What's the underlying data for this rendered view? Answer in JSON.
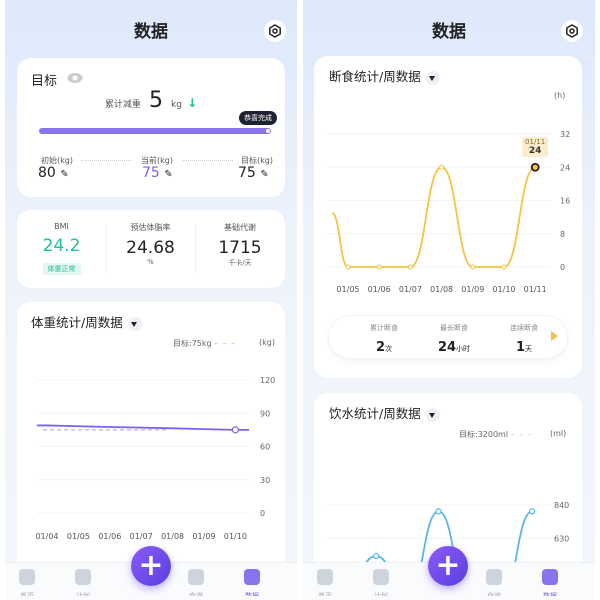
{
  "screens": [
    {
      "title": "数据",
      "settings_icon": "settings-hexagon-icon",
      "goal": {
        "label": "目标",
        "eye_icon": "eye-icon",
        "loss_label": "累计减重",
        "loss_value": "5",
        "loss_unit": "kg",
        "trend_icon": "arrow-down-icon",
        "badge": "恭喜完成",
        "progress_percent": 100,
        "initial_label": "初始(kg)",
        "initial_value": "80",
        "current_label": "当前(kg)",
        "current_value": "75",
        "target_label": "目标(kg)",
        "target_value": "75"
      },
      "metrics": [
        {
          "label": "BMI",
          "value": "24.2",
          "tag": "体重正常"
        },
        {
          "label": "预估体脂率",
          "value": "24.68",
          "unit": "%"
        },
        {
          "label": "基础代谢",
          "value": "1715",
          "unit": "千卡/天"
        }
      ],
      "weight_chart": {
        "title": "体重统计/周数据",
        "target_label": "目标:75kg",
        "unit": "(kg)"
      }
    },
    {
      "title": "数据",
      "settings_icon": "settings-hexagon-icon",
      "fasting_chart": {
        "title": "断食统计/周数据",
        "unit": "(h)",
        "tooltip_date": "01/11",
        "tooltip_value": "24"
      },
      "fasting_summary": [
        {
          "label": "累计断食",
          "value": "2",
          "unit": "次"
        },
        {
          "label": "最长断食",
          "value": "24",
          "unit": "小时"
        },
        {
          "label": "连续断食",
          "value": "1",
          "unit": "天"
        }
      ],
      "water_chart": {
        "title": "饮水统计/周数据",
        "target_label": "目标:3200ml",
        "unit": "(ml)"
      }
    }
  ],
  "tabbar": {
    "tabs": [
      "首页",
      "计划",
      "记录",
      "食谱",
      "数据"
    ],
    "active": "数据",
    "add_icon": "plus-icon"
  },
  "colors": {
    "accent": "#7b61f0",
    "weight_line": "#7b61f0",
    "fasting_line": "#f5c242",
    "water_line": "#5ab4ea",
    "bmi": "#1fbf9a"
  },
  "chart_data": [
    {
      "type": "line",
      "title": "体重统计/周数据",
      "ylabel": "(kg)",
      "categories": [
        "01/04",
        "01/05",
        "01/06",
        "01/07",
        "01/08",
        "01/09",
        "01/10"
      ],
      "values": [
        79,
        78.3,
        77.6,
        77,
        76.4,
        75.7,
        75
      ],
      "target": 75,
      "ylim": [
        0,
        120
      ],
      "yticks": [
        0,
        30,
        60,
        90,
        120
      ]
    },
    {
      "type": "line",
      "title": "断食统计/周数据",
      "ylabel": "(h)",
      "categories": [
        "01/05",
        "01/06",
        "01/07",
        "01/08",
        "01/09",
        "01/10",
        "01/11"
      ],
      "values": [
        0,
        0,
        0,
        24,
        0,
        0,
        24
      ],
      "ylim": [
        0,
        32
      ],
      "yticks": [
        0,
        8,
        16,
        24,
        32
      ]
    },
    {
      "type": "line",
      "title": "饮水统计/周数据",
      "ylabel": "(ml)",
      "values": [
        300,
        520,
        0,
        800,
        0,
        0,
        800
      ],
      "target": 3200,
      "yticks": [
        420,
        630,
        840
      ]
    }
  ]
}
